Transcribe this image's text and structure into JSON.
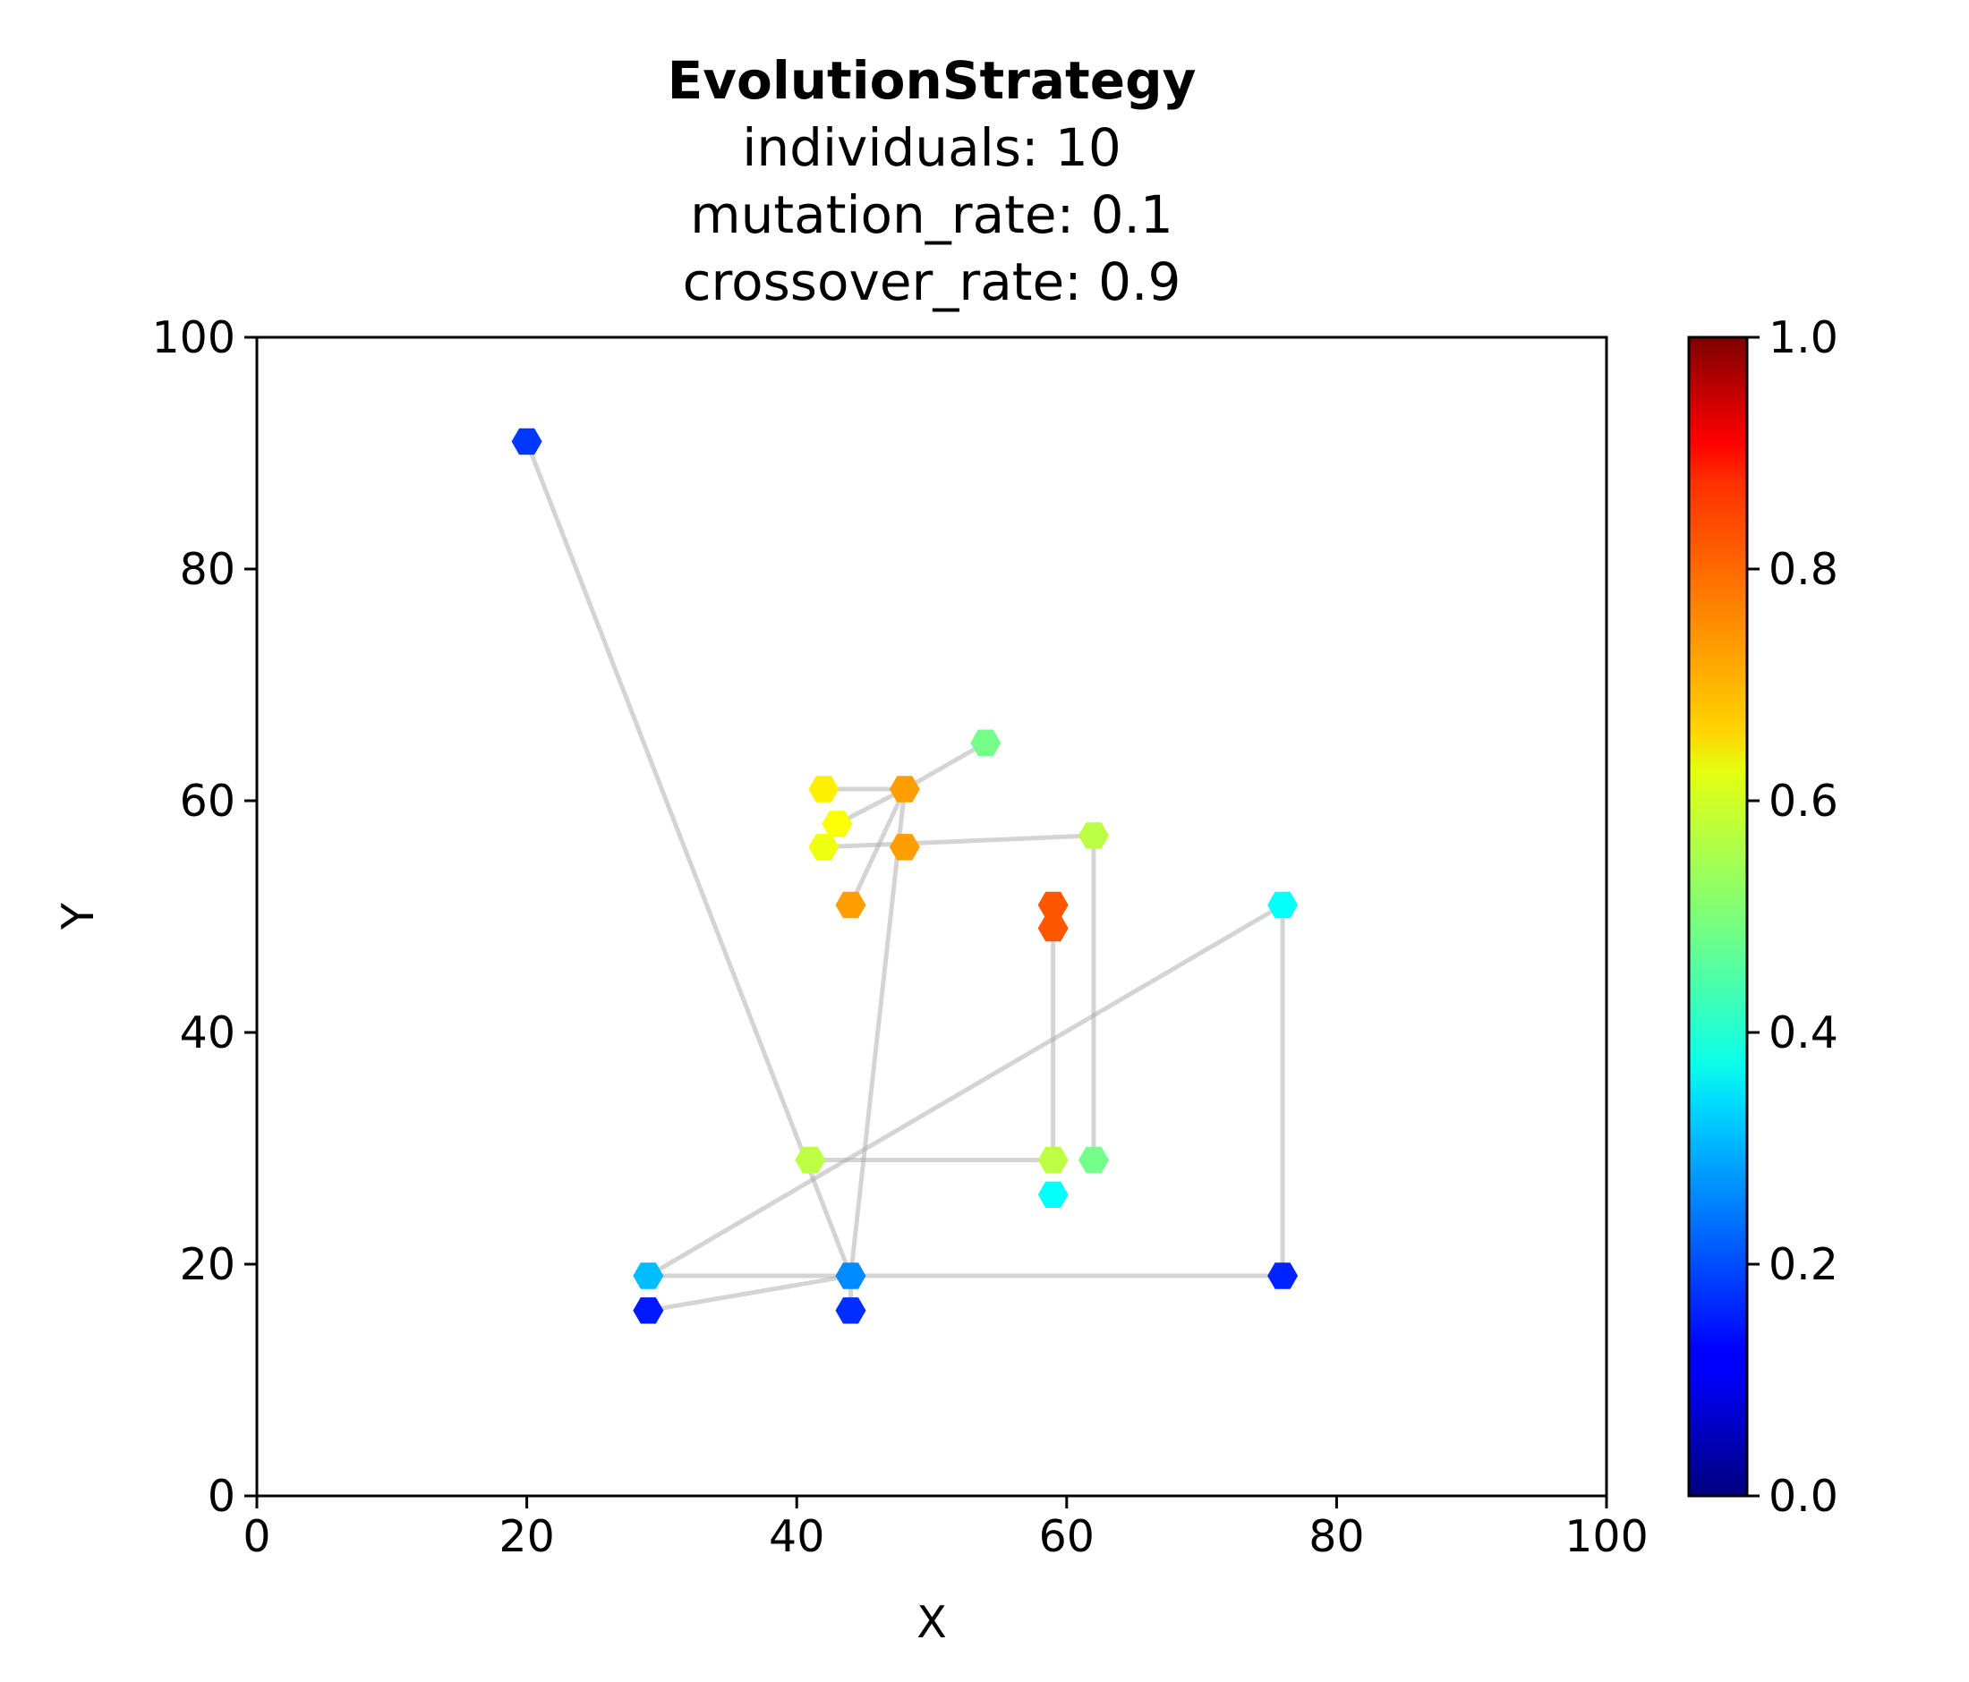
{
  "chart_data": {
    "type": "scatter",
    "title": "EvolutionStrategy",
    "subtitle_lines": [
      "individuals: 10",
      "mutation_rate: 0.1",
      "crossover_rate: 0.9"
    ],
    "xlabel": "X",
    "ylabel": "Y",
    "xlim": [
      0,
      100
    ],
    "ylim": [
      0,
      100
    ],
    "xticks": [
      "0",
      "20",
      "40",
      "60",
      "80",
      "100"
    ],
    "yticks": [
      "0",
      "20",
      "40",
      "60",
      "80",
      "100"
    ],
    "grid": false,
    "marker": "hexagon",
    "colormap": "jet",
    "colorbar": {
      "range": [
        0,
        1
      ],
      "ticks": [
        "0.0",
        "0.2",
        "0.4",
        "0.6",
        "0.8",
        "1.0"
      ]
    },
    "points": [
      {
        "x": 20,
        "y": 91,
        "c": 0.18
      },
      {
        "x": 44,
        "y": 19,
        "c": 0.26
      },
      {
        "x": 44,
        "y": 16,
        "c": 0.17
      },
      {
        "x": 29,
        "y": 19,
        "c": 0.31
      },
      {
        "x": 29,
        "y": 16,
        "c": 0.15
      },
      {
        "x": 76,
        "y": 51,
        "c": 0.38
      },
      {
        "x": 76,
        "y": 19,
        "c": 0.16
      },
      {
        "x": 41,
        "y": 29,
        "c": 0.56
      },
      {
        "x": 59,
        "y": 29,
        "c": 0.56
      },
      {
        "x": 59,
        "y": 26,
        "c": 0.38
      },
      {
        "x": 62,
        "y": 29,
        "c": 0.49
      },
      {
        "x": 62,
        "y": 57,
        "c": 0.56
      },
      {
        "x": 59,
        "y": 51,
        "c": 0.79
      },
      {
        "x": 59,
        "y": 49,
        "c": 0.79
      },
      {
        "x": 54,
        "y": 65,
        "c": 0.49
      },
      {
        "x": 48,
        "y": 61,
        "c": 0.72
      },
      {
        "x": 48,
        "y": 56,
        "c": 0.72
      },
      {
        "x": 42,
        "y": 61,
        "c": 0.64
      },
      {
        "x": 43,
        "y": 58,
        "c": 0.62
      },
      {
        "x": 42,
        "y": 56,
        "c": 0.61
      },
      {
        "x": 44,
        "y": 51,
        "c": 0.72
      }
    ],
    "paths": [
      [
        [
          20,
          91
        ],
        [
          44,
          19
        ]
      ],
      [
        [
          29,
          19
        ],
        [
          44,
          19
        ]
      ],
      [
        [
          44,
          19
        ],
        [
          76,
          19
        ]
      ],
      [
        [
          76,
          19
        ],
        [
          76,
          51
        ]
      ],
      [
        [
          76,
          51
        ],
        [
          29,
          19
        ]
      ],
      [
        [
          29,
          16
        ],
        [
          44,
          19
        ]
      ],
      [
        [
          44,
          19
        ],
        [
          44,
          16
        ]
      ],
      [
        [
          44,
          19
        ],
        [
          48,
          61
        ]
      ],
      [
        [
          41,
          29
        ],
        [
          59,
          29
        ]
      ],
      [
        [
          62,
          29
        ],
        [
          62,
          57
        ]
      ],
      [
        [
          62,
          57
        ],
        [
          42,
          56
        ]
      ],
      [
        [
          59,
          29
        ],
        [
          59,
          51
        ]
      ],
      [
        [
          42,
          61
        ],
        [
          48,
          61
        ]
      ],
      [
        [
          48,
          61
        ],
        [
          54,
          65
        ]
      ],
      [
        [
          48,
          61
        ],
        [
          43,
          58
        ]
      ],
      [
        [
          48,
          61
        ],
        [
          44,
          51
        ]
      ]
    ]
  }
}
